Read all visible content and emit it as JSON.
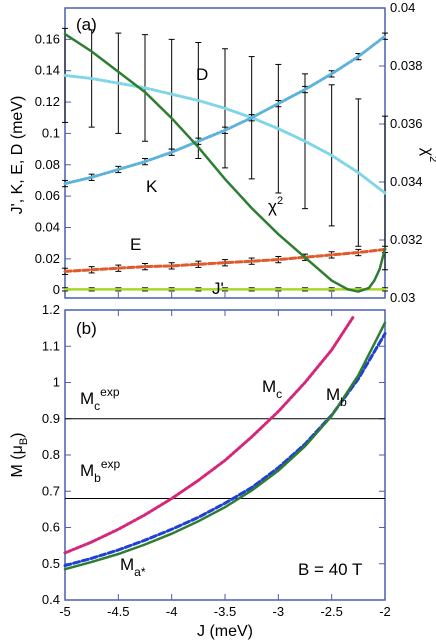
{
  "chart_data": [
    {
      "type": "line",
      "panel_label": "(a)",
      "xlim": [
        -5,
        -2
      ],
      "ylim": [
        -0.005,
        0.18
      ],
      "y2lim": [
        0.03,
        0.04
      ],
      "yticks": [
        "0",
        "0.02",
        "0.04",
        "0.06",
        "0.08",
        "0.1",
        "0.12",
        "0.14",
        "0.16"
      ],
      "ytick_values": [
        0,
        0.02,
        0.04,
        0.06,
        0.08,
        0.1,
        0.12,
        0.14,
        0.16
      ],
      "y2ticks": [
        "0.03",
        "0.032",
        "0.034",
        "0.036",
        "0.038",
        "0.04"
      ],
      "y2tick_values": [
        0.03,
        0.032,
        0.034,
        0.036,
        0.038,
        0.04
      ],
      "ylabel": "J', K, E, D (meV)",
      "y2label": "χ",
      "y2label_sup": "2",
      "series": [
        {
          "name": "D",
          "axis": "left",
          "color": "#7fd6e6",
          "style": "dotted",
          "x": [
            -5,
            -4.75,
            -4.5,
            -4.25,
            -4,
            -3.75,
            -3.5,
            -3.25,
            -3,
            -2.75,
            -2.5,
            -2.25,
            -2
          ],
          "values": [
            0.137,
            0.135,
            0.132,
            0.129,
            0.125,
            0.121,
            0.116,
            0.11,
            0.103,
            0.095,
            0.086,
            0.075,
            0.062
          ],
          "errors": [
            0.03,
            0.031,
            0.032,
            0.034,
            0.035,
            0.037,
            0.038,
            0.039,
            0.041,
            0.043,
            0.045,
            0.047,
            0.049
          ]
        },
        {
          "name": "K",
          "axis": "left",
          "color": "#5db3d9",
          "style": "dotted",
          "x": [
            -5,
            -4.75,
            -4.5,
            -4.25,
            -4,
            -3.75,
            -3.5,
            -3.25,
            -3,
            -2.75,
            -2.5,
            -2.25,
            -2
          ],
          "values": [
            0.068,
            0.072,
            0.077,
            0.082,
            0.088,
            0.095,
            0.102,
            0.11,
            0.119,
            0.128,
            0.138,
            0.149,
            0.162
          ],
          "errors": [
            0.002,
            0.002,
            0.002,
            0.002,
            0.002,
            0.002,
            0.002,
            0.002,
            0.002,
            0.002,
            0.002,
            0.002,
            0.002
          ]
        },
        {
          "name": "E",
          "axis": "left",
          "color": "#e05a2b",
          "style": "dashed",
          "x": [
            -5,
            -4.75,
            -4.5,
            -4.25,
            -4,
            -3.75,
            -3.5,
            -3.25,
            -3,
            -2.75,
            -2.5,
            -2.25,
            -2
          ],
          "values": [
            0.012,
            0.013,
            0.014,
            0.015,
            0.0155,
            0.0165,
            0.0175,
            0.0185,
            0.0195,
            0.021,
            0.0225,
            0.024,
            0.026
          ],
          "errors": [
            0.002,
            0.002,
            0.002,
            0.002,
            0.002,
            0.002,
            0.002,
            0.002,
            0.002,
            0.002,
            0.002,
            0.002,
            0.002
          ]
        },
        {
          "name": "J'",
          "axis": "left",
          "color": "#a8d62a",
          "style": "solid",
          "x": [
            -5,
            -4.75,
            -4.5,
            -4.25,
            -4,
            -3.75,
            -3.5,
            -3.25,
            -3,
            -2.75,
            -2.5,
            -2.25,
            -2
          ],
          "values": [
            0.0005,
            0.0005,
            0.0005,
            0.0005,
            0.0005,
            0.0005,
            0.0005,
            0.0005,
            0.0005,
            0.0005,
            0.0005,
            0.0005,
            0.0005
          ],
          "errors": [
            0.001,
            0.001,
            0.001,
            0.001,
            0.001,
            0.001,
            0.001,
            0.001,
            0.001,
            0.001,
            0.001,
            0.001,
            0.001
          ]
        },
        {
          "name": "χ²",
          "axis": "right",
          "color": "#2e7d32",
          "style": "solid",
          "x": [
            -5,
            -4.75,
            -4.5,
            -4.25,
            -4,
            -3.75,
            -3.5,
            -3.25,
            -3,
            -2.75,
            -2.5,
            -2.35,
            -2.25,
            -2.15,
            -2.1,
            -2.05,
            -2
          ],
          "values": [
            0.0391,
            0.0385,
            0.0378,
            0.0371,
            0.0362,
            0.0352,
            0.0341,
            0.0331,
            0.0322,
            0.0314,
            0.0306,
            0.0303,
            0.03022,
            0.03035,
            0.0306,
            0.031,
            0.0317
          ]
        }
      ],
      "labels": {
        "D": "D",
        "K": "K",
        "E": "E",
        "Jp": "J'",
        "chi": "χ",
        "chi_sup": "2"
      }
    },
    {
      "type": "line",
      "panel_label": "(b)",
      "xlim": [
        -5,
        -2
      ],
      "ylim": [
        0.4,
        1.2
      ],
      "xticks": [
        "-5",
        "-4.5",
        "-4",
        "-3.5",
        "-3",
        "-2.5",
        "-2"
      ],
      "xtick_values": [
        -5,
        -4.5,
        -4,
        -3.5,
        -3,
        -2.5,
        -2
      ],
      "yticks": [
        "0.4",
        "0.5",
        "0.6",
        "0.7",
        "0.8",
        "0.9",
        "1",
        "1.1",
        "1.2"
      ],
      "ytick_values": [
        0.4,
        0.5,
        0.6,
        0.7,
        0.8,
        0.9,
        1.0,
        1.1,
        1.2
      ],
      "xlabel": "J (meV)",
      "ylabel": "M (μ",
      "ylabel_sub": "B",
      "ylabel_end": ")",
      "hlines": [
        0.9,
        0.68
      ],
      "series": [
        {
          "name": "Mc",
          "color": "#d6267a",
          "style": "dotted",
          "x": [
            -5,
            -4.75,
            -4.5,
            -4.25,
            -4,
            -3.75,
            -3.5,
            -3.25,
            -3,
            -2.75,
            -2.5,
            -2.3
          ],
          "values": [
            0.53,
            0.56,
            0.595,
            0.635,
            0.68,
            0.73,
            0.785,
            0.85,
            0.92,
            1.0,
            1.09,
            1.18
          ]
        },
        {
          "name": "Mb",
          "color": "#1f3fd6",
          "style": "dashed",
          "x": [
            -5,
            -4.75,
            -4.5,
            -4.25,
            -4,
            -3.75,
            -3.5,
            -3.25,
            -3,
            -2.75,
            -2.5,
            -2.25,
            -2
          ],
          "values": [
            0.495,
            0.515,
            0.538,
            0.565,
            0.595,
            0.628,
            0.667,
            0.71,
            0.765,
            0.83,
            0.91,
            1.01,
            1.135
          ]
        },
        {
          "name": "Ma*",
          "color": "#2e7d32",
          "style": "solid",
          "x": [
            -5,
            -4.75,
            -4.5,
            -4.25,
            -4,
            -3.75,
            -3.5,
            -3.25,
            -3,
            -2.75,
            -2.5,
            -2.25,
            -2
          ],
          "values": [
            0.485,
            0.505,
            0.527,
            0.553,
            0.583,
            0.617,
            0.656,
            0.702,
            0.757,
            0.824,
            0.908,
            1.02,
            1.165
          ]
        }
      ],
      "labels": {
        "Mc_exp_main": "M",
        "Mc_exp_sub": "c",
        "Mc_exp_sup": "exp",
        "Mb_exp_main": "M",
        "Mb_exp_sub": "b",
        "Mb_exp_sup": "exp",
        "Mc_main": "M",
        "Mc_sub": "c",
        "Mb_main": "M",
        "Mb_sub": "b",
        "Ma_main": "M",
        "Ma_sub": "a*",
        "field": "B = 40 T"
      }
    }
  ]
}
